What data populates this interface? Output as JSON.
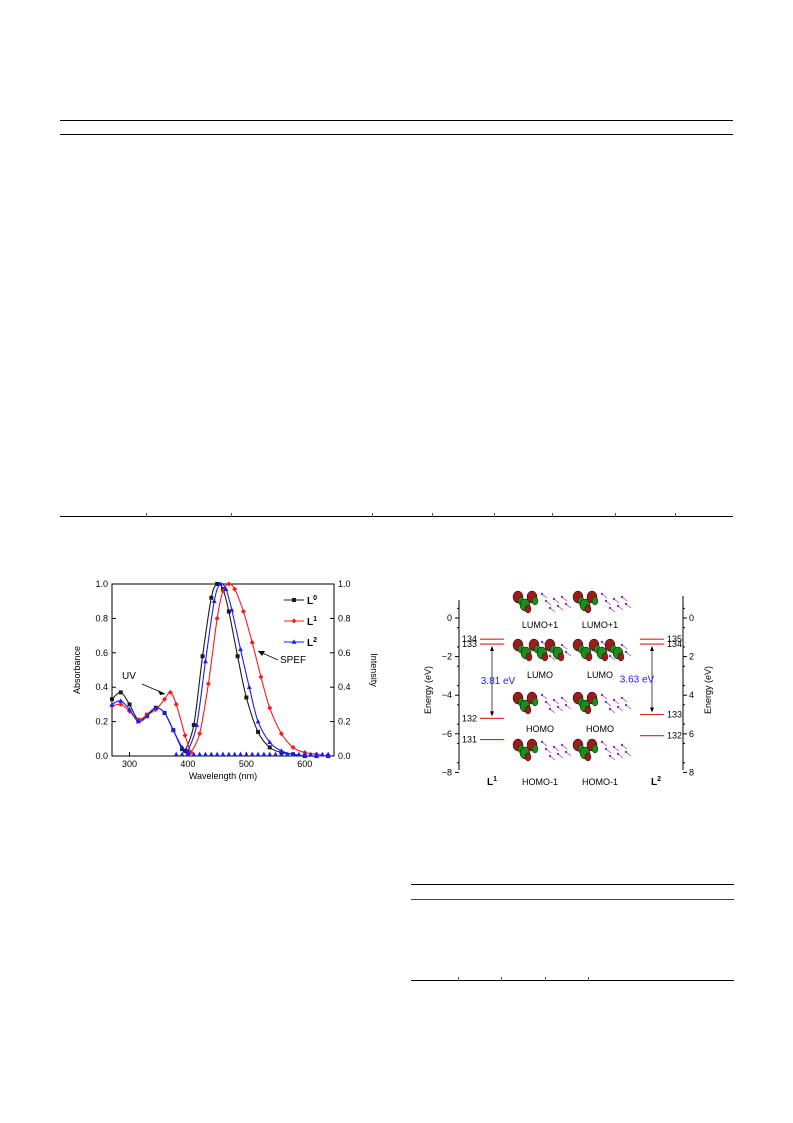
{
  "chart_data": {
    "type": "line",
    "xlabel": "Wavelength (nm)",
    "ylabel": "Absorbance",
    "y2label": "Intensity",
    "xlim": [
      270,
      650
    ],
    "ylim": [
      0,
      1.0
    ],
    "y2lim": [
      0,
      1.0
    ],
    "x_ticks": [
      300,
      400,
      500,
      600
    ],
    "y_ticks": [
      0.0,
      0.2,
      0.4,
      0.6,
      0.8,
      1.0
    ],
    "y_tick_labels": [
      "0.0",
      "0.2",
      "0.4",
      "0.6",
      "0.8",
      "1.0"
    ],
    "legend_position": "top-right",
    "colors": {
      "L0": "#1a1a1a",
      "L1": "#ff1a1a",
      "L2": "#1a1aff"
    },
    "annotations": [
      "UV",
      "SPEF"
    ],
    "series": [
      {
        "name": "L0",
        "legend_base": "L",
        "legend_sup": "0",
        "color": "#1a1a1a",
        "marker": "square",
        "uv": {
          "x": [
            270,
            285,
            300,
            315,
            330,
            345,
            360,
            375,
            390,
            400
          ],
          "y": [
            0.33,
            0.37,
            0.3,
            0.21,
            0.24,
            0.28,
            0.25,
            0.15,
            0.04,
            0.01
          ]
        },
        "pl": {
          "x": [
            395,
            410,
            425,
            440,
            450,
            460,
            470,
            485,
            500,
            520,
            540,
            560,
            580,
            600,
            620,
            640
          ],
          "y": [
            0.03,
            0.18,
            0.58,
            0.92,
            1.0,
            0.97,
            0.84,
            0.58,
            0.34,
            0.14,
            0.05,
            0.02,
            0.01,
            0.0,
            0.0,
            0.0
          ]
        }
      },
      {
        "name": "L1",
        "legend_base": "L",
        "legend_sup": "1",
        "color": "#ff1a1a",
        "marker": "diamond",
        "uv": {
          "x": [
            270,
            285,
            300,
            315,
            330,
            345,
            360,
            370,
            380,
            395,
            405
          ],
          "y": [
            0.29,
            0.3,
            0.26,
            0.21,
            0.24,
            0.27,
            0.33,
            0.37,
            0.3,
            0.12,
            0.02
          ]
        },
        "pl": {
          "x": [
            405,
            420,
            435,
            450,
            460,
            470,
            480,
            495,
            510,
            525,
            540,
            560,
            580,
            600,
            620,
            640
          ],
          "y": [
            0.02,
            0.13,
            0.42,
            0.8,
            0.96,
            1.0,
            0.97,
            0.84,
            0.66,
            0.46,
            0.28,
            0.13,
            0.05,
            0.02,
            0.01,
            0.0
          ]
        }
      },
      {
        "name": "L2",
        "legend_base": "L",
        "legend_sup": "2",
        "color": "#1a1aff",
        "marker": "triangle",
        "uv": {
          "x": [
            270,
            285,
            300,
            315,
            330,
            345,
            360,
            375,
            390,
            400
          ],
          "y": [
            0.3,
            0.32,
            0.27,
            0.2,
            0.23,
            0.28,
            0.25,
            0.15,
            0.05,
            0.02
          ]
        },
        "pl": {
          "x": [
            400,
            415,
            430,
            445,
            455,
            465,
            475,
            490,
            505,
            520,
            540,
            560,
            580,
            600,
            620,
            640
          ],
          "y": [
            0.03,
            0.18,
            0.55,
            0.9,
            1.0,
            0.97,
            0.85,
            0.62,
            0.4,
            0.2,
            0.08,
            0.03,
            0.01,
            0.0,
            0.0,
            0.0
          ]
        }
      }
    ],
    "baseline_markers_x": [
      380,
      390,
      400,
      410,
      420,
      430,
      440,
      450,
      460,
      470,
      480,
      490,
      500,
      510,
      520,
      530,
      540,
      550,
      560,
      570,
      580,
      590,
      600,
      610,
      620,
      630,
      640
    ]
  },
  "energy_diagram": {
    "ylabel": "Energy (eV)",
    "y_ticks": [
      0,
      -2,
      -4,
      -6,
      -8
    ],
    "y_tick_labels_left": [
      "0",
      "−2",
      "−4",
      "−6",
      "−8"
    ],
    "y_tick_labels_right": [
      "0",
      "2",
      "4",
      "6",
      "8"
    ],
    "level_color": "#e61e1e",
    "gap_color": "#1a1aff",
    "left_ligand": {
      "base": "L",
      "sup": "1"
    },
    "right_ligand": {
      "base": "L",
      "sup": "2"
    },
    "left_levels": [
      {
        "label": "134",
        "energy": -1.1
      },
      {
        "label": "133",
        "energy": -1.35
      },
      {
        "label": "132",
        "energy": -5.2
      },
      {
        "label": "131",
        "energy": -6.3
      }
    ],
    "right_levels": [
      {
        "label": "135",
        "energy": -1.1
      },
      {
        "label": "134",
        "energy": -1.35
      },
      {
        "label": "133",
        "energy": -5.0
      },
      {
        "label": "132",
        "energy": -6.1
      }
    ],
    "left_gap": "3.81 eV",
    "right_gap": "3.63 eV",
    "orbital_labels_left": [
      "LUMO+1",
      "LUMO",
      "HOMO",
      "HOMO-1"
    ],
    "orbital_labels_right": [
      "LUMO+1",
      "LUMO",
      "HOMO",
      "HOMO-1"
    ]
  }
}
